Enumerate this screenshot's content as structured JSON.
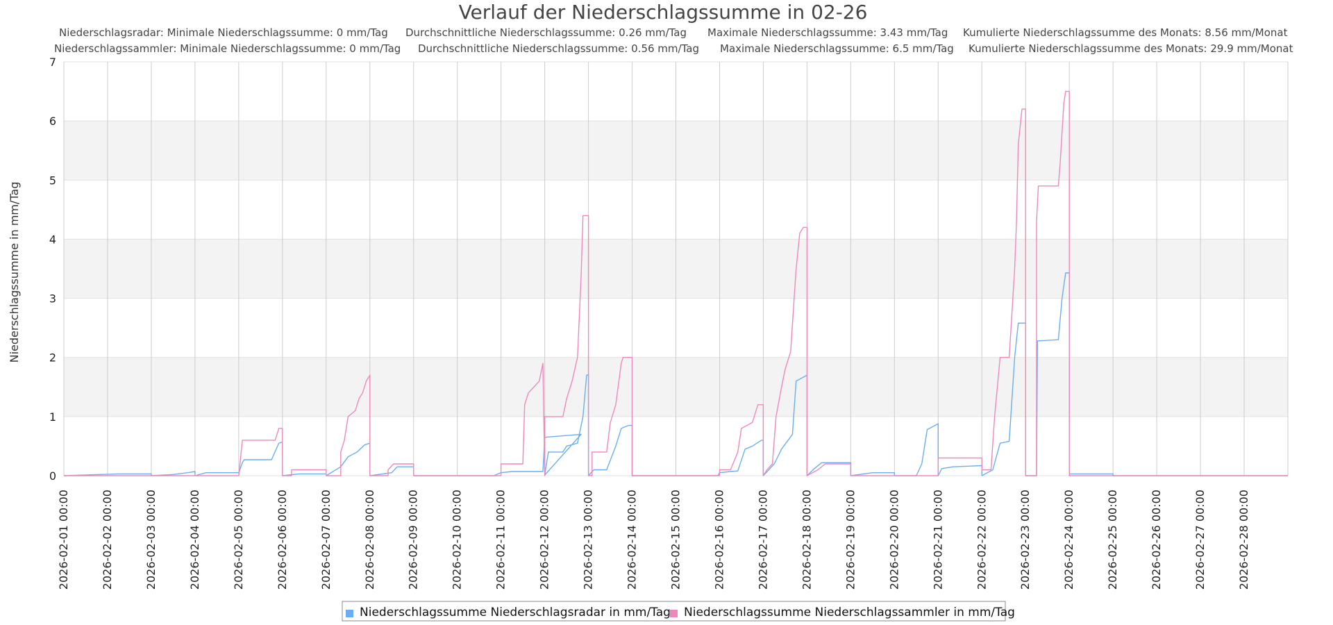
{
  "chart_data": {
    "type": "line",
    "title": "Verlauf der Niederschlagssumme in 02-26",
    "stats": [
      [
        "Niederschlagsradar: Minimale Niederschlagssumme: 0 mm/Tag",
        "Durchschnittliche Niederschlagssumme: 0.26 mm/Tag",
        "Maximale Niederschlagssumme: 3.43 mm/Tag",
        "Kumulierte Niederschlagssumme des Monats: 8.56 mm/Monat"
      ],
      [
        "Niederschlagssammler: Minimale Niederschlagssumme: 0 mm/Tag",
        "Durchschnittliche Niederschlagssumme: 0.56 mm/Tag",
        "Maximale Niederschlagssumme: 6.5 mm/Tag",
        "Kumulierte Niederschlagssumme des Monats: 29.9 mm/Monat"
      ]
    ],
    "xlabel": "",
    "ylabel": "Niederschlagssumme in mm/Tag",
    "x_tick_labels": [
      "2026-02-01 00:00",
      "2026-02-02 00:00",
      "2026-02-03 00:00",
      "2026-02-04 00:00",
      "2026-02-05 00:00",
      "2026-02-06 00:00",
      "2026-02-07 00:00",
      "2026-02-08 00:00",
      "2026-02-09 00:00",
      "2026-02-10 00:00",
      "2026-02-11 00:00",
      "2026-02-12 00:00",
      "2026-02-13 00:00",
      "2026-02-14 00:00",
      "2026-02-15 00:00",
      "2026-02-16 00:00",
      "2026-02-17 00:00",
      "2026-02-18 00:00",
      "2026-02-19 00:00",
      "2026-02-20 00:00",
      "2026-02-21 00:00",
      "2026-02-22 00:00",
      "2026-02-23 00:00",
      "2026-02-24 00:00",
      "2026-02-25 00:00",
      "2026-02-26 00:00",
      "2026-02-27 00:00",
      "2026-02-28 00:00"
    ],
    "x_range": [
      "2026-02-01 00:00",
      "2026-03-01 00:00"
    ],
    "ylim": [
      0,
      7
    ],
    "y_ticks": [
      0,
      1,
      2,
      3,
      4,
      5,
      6,
      7
    ],
    "grid": true,
    "legend_position": "bottom-center",
    "series": [
      {
        "name": "Niederschlagssumme Niederschlagsradar in mm/Tag",
        "color": "#6aaeee",
        "points": [
          [
            "2026-02-01 00:00",
            0
          ],
          [
            "2026-02-02 06:00",
            0.03
          ],
          [
            "2026-02-03 00:00",
            0.03
          ],
          [
            "2026-02-03 00:00",
            0
          ],
          [
            "2026-02-03 12:00",
            0.02
          ],
          [
            "2026-02-03 20:00",
            0.05
          ],
          [
            "2026-02-04 00:00",
            0.07
          ],
          [
            "2026-02-04 00:00",
            0
          ],
          [
            "2026-02-04 06:00",
            0.05
          ],
          [
            "2026-02-05 00:00",
            0.05
          ],
          [
            "2026-02-05 02:00",
            0.22
          ],
          [
            "2026-02-05 03:00",
            0.27
          ],
          [
            "2026-02-05 18:00",
            0.27
          ],
          [
            "2026-02-05 22:00",
            0.55
          ],
          [
            "2026-02-06 00:00",
            0.57
          ],
          [
            "2026-02-06 00:00",
            0
          ],
          [
            "2026-02-06 09:00",
            0.03
          ],
          [
            "2026-02-07 00:00",
            0.03
          ],
          [
            "2026-02-07 00:00",
            0
          ],
          [
            "2026-02-07 08:00",
            0.15
          ],
          [
            "2026-02-07 12:00",
            0.32
          ],
          [
            "2026-02-07 17:00",
            0.4
          ],
          [
            "2026-02-07 21:00",
            0.52
          ],
          [
            "2026-02-08 00:00",
            0.55
          ],
          [
            "2026-02-08 00:00",
            0
          ],
          [
            "2026-02-08 12:00",
            0.05
          ],
          [
            "2026-02-08 15:00",
            0.15
          ],
          [
            "2026-02-09 00:00",
            0.15
          ],
          [
            "2026-02-09 00:00",
            0
          ],
          [
            "2026-02-10 20:00",
            0
          ],
          [
            "2026-02-11 00:00",
            0.05
          ],
          [
            "2026-02-11 06:00",
            0.07
          ],
          [
            "2026-02-11 23:00",
            0.07
          ],
          [
            "2026-02-12 00:00",
            0.65
          ],
          [
            "2026-02-12 20:00",
            0.7
          ],
          [
            "2026-02-12 00:00",
            0.01
          ],
          [
            "2026-02-12 02:00",
            0.4
          ],
          [
            "2026-02-12 10:00",
            0.4
          ],
          [
            "2026-02-12 12:00",
            0.5
          ],
          [
            "2026-02-12 18:00",
            0.55
          ],
          [
            "2026-02-12 21:00",
            1.0
          ],
          [
            "2026-02-12 23:00",
            1.7
          ],
          [
            "2026-02-13 00:00",
            1.71
          ],
          [
            "2026-02-13 00:00",
            0
          ],
          [
            "2026-02-13 03:00",
            0.1
          ],
          [
            "2026-02-13 10:00",
            0.1
          ],
          [
            "2026-02-13 15:00",
            0.5
          ],
          [
            "2026-02-13 18:00",
            0.8
          ],
          [
            "2026-02-13 22:00",
            0.85
          ],
          [
            "2026-02-14 00:00",
            0.85
          ],
          [
            "2026-02-14 00:00",
            0
          ],
          [
            "2026-02-15 23:00",
            0
          ],
          [
            "2026-02-16 00:00",
            0.05
          ],
          [
            "2026-02-16 06:00",
            0.07
          ],
          [
            "2026-02-16 10:00",
            0.08
          ],
          [
            "2026-02-16 14:00",
            0.45
          ],
          [
            "2026-02-16 18:00",
            0.5
          ],
          [
            "2026-02-16 23:00",
            0.6
          ],
          [
            "2026-02-17 00:00",
            0.6
          ],
          [
            "2026-02-17 00:00",
            0
          ],
          [
            "2026-02-17 06:00",
            0.2
          ],
          [
            "2026-02-17 10:00",
            0.45
          ],
          [
            "2026-02-17 16:00",
            0.7
          ],
          [
            "2026-02-17 18:00",
            1.6
          ],
          [
            "2026-02-18 00:00",
            1.7
          ],
          [
            "2026-02-18 00:00",
            0
          ],
          [
            "2026-02-18 04:00",
            0.12
          ],
          [
            "2026-02-18 08:00",
            0.22
          ],
          [
            "2026-02-19 00:00",
            0.22
          ],
          [
            "2026-02-19 00:00",
            0
          ],
          [
            "2026-02-19 12:00",
            0.05
          ],
          [
            "2026-02-20 00:00",
            0.05
          ],
          [
            "2026-02-20 00:00",
            0
          ],
          [
            "2026-02-20 12:00",
            0
          ],
          [
            "2026-02-20 15:00",
            0.2
          ],
          [
            "2026-02-20 18:00",
            0.78
          ],
          [
            "2026-02-21 00:00",
            0.88
          ],
          [
            "2026-02-21 00:00",
            0
          ],
          [
            "2026-02-21 02:00",
            0.12
          ],
          [
            "2026-02-21 08:00",
            0.15
          ],
          [
            "2026-02-22 00:00",
            0.17
          ],
          [
            "2026-02-22 00:00",
            0
          ],
          [
            "2026-02-22 06:00",
            0.1
          ],
          [
            "2026-02-22 10:00",
            0.55
          ],
          [
            "2026-02-22 15:00",
            0.58
          ],
          [
            "2026-02-22 18:00",
            2.0
          ],
          [
            "2026-02-22 20:00",
            2.58
          ],
          [
            "2026-02-23 00:00",
            2.58
          ],
          [
            "2026-02-23 00:00",
            0
          ],
          [
            "2026-02-23 06:00",
            0
          ],
          [
            "2026-02-23 06:30",
            2.28
          ],
          [
            "2026-02-23 18:00",
            2.3
          ],
          [
            "2026-02-23 20:00",
            3.0
          ],
          [
            "2026-02-23 22:00",
            3.43
          ],
          [
            "2026-02-24 00:00",
            3.43
          ],
          [
            "2026-02-24 00:00",
            0
          ],
          [
            "2026-02-24 00:00",
            0.03
          ],
          [
            "2026-02-25 00:00",
            0.03
          ],
          [
            "2026-02-25 00:00",
            0
          ],
          [
            "2026-03-01 00:00",
            0
          ]
        ]
      },
      {
        "name": "Niederschlagssumme Niederschlagssammler in mm/Tag",
        "color": "#ee88bb",
        "points": [
          [
            "2026-02-01 00:00",
            0
          ],
          [
            "2026-02-05 00:00",
            0
          ],
          [
            "2026-02-05 01:00",
            0.3
          ],
          [
            "2026-02-05 02:00",
            0.6
          ],
          [
            "2026-02-05 20:00",
            0.6
          ],
          [
            "2026-02-05 21:00",
            0.7
          ],
          [
            "2026-02-05 22:00",
            0.8
          ],
          [
            "2026-02-06 00:00",
            0.8
          ],
          [
            "2026-02-06 00:00",
            0
          ],
          [
            "2026-02-06 05:00",
            0
          ],
          [
            "2026-02-06 05:00",
            0.1
          ],
          [
            "2026-02-07 00:00",
            0.1
          ],
          [
            "2026-02-07 00:00",
            0
          ],
          [
            "2026-02-07 08:00",
            0
          ],
          [
            "2026-02-07 08:00",
            0.4
          ],
          [
            "2026-02-07 10:00",
            0.6
          ],
          [
            "2026-02-07 12:00",
            1.0
          ],
          [
            "2026-02-07 16:00",
            1.1
          ],
          [
            "2026-02-07 18:00",
            1.3
          ],
          [
            "2026-02-07 20:00",
            1.4
          ],
          [
            "2026-02-07 22:00",
            1.6
          ],
          [
            "2026-02-08 00:00",
            1.7
          ],
          [
            "2026-02-08 00:00",
            0
          ],
          [
            "2026-02-08 10:00",
            0
          ],
          [
            "2026-02-08 10:00",
            0.1
          ],
          [
            "2026-02-08 13:00",
            0.2
          ],
          [
            "2026-02-09 00:00",
            0.2
          ],
          [
            "2026-02-09 00:00",
            0
          ],
          [
            "2026-02-11 00:00",
            0
          ],
          [
            "2026-02-11 00:00",
            0.2
          ],
          [
            "2026-02-11 12:00",
            0.2
          ],
          [
            "2026-02-11 13:00",
            1.2
          ],
          [
            "2026-02-11 15:00",
            1.4
          ],
          [
            "2026-02-11 18:00",
            1.5
          ],
          [
            "2026-02-11 21:00",
            1.6
          ],
          [
            "2026-02-11 23:00",
            1.9
          ],
          [
            "2026-02-12 00:00",
            0
          ],
          [
            "2026-02-12 00:00",
            1.0
          ],
          [
            "2026-02-12 10:00",
            1.0
          ],
          [
            "2026-02-12 12:00",
            1.3
          ],
          [
            "2026-02-12 15:00",
            1.6
          ],
          [
            "2026-02-12 18:00",
            2.0
          ],
          [
            "2026-02-12 20:00",
            3.4
          ],
          [
            "2026-02-12 21:00",
            4.4
          ],
          [
            "2026-02-13 00:00",
            4.4
          ],
          [
            "2026-02-13 00:00",
            0
          ],
          [
            "2026-02-13 02:00",
            0
          ],
          [
            "2026-02-13 02:00",
            0.4
          ],
          [
            "2026-02-13 10:00",
            0.4
          ],
          [
            "2026-02-13 12:00",
            0.9
          ],
          [
            "2026-02-13 15:00",
            1.2
          ],
          [
            "2026-02-13 18:00",
            1.9
          ],
          [
            "2026-02-13 19:00",
            2.0
          ],
          [
            "2026-02-14 00:00",
            2.0
          ],
          [
            "2026-02-14 00:00",
            0
          ],
          [
            "2026-02-16 00:00",
            0
          ],
          [
            "2026-02-16 00:00",
            0.1
          ],
          [
            "2026-02-16 06:00",
            0.1
          ],
          [
            "2026-02-16 10:00",
            0.4
          ],
          [
            "2026-02-16 12:00",
            0.8
          ],
          [
            "2026-02-16 18:00",
            0.9
          ],
          [
            "2026-02-16 21:00",
            1.2
          ],
          [
            "2026-02-17 00:00",
            1.2
          ],
          [
            "2026-02-17 00:00",
            0
          ],
          [
            "2026-02-17 02:00",
            0.1
          ],
          [
            "2026-02-17 05:00",
            0.2
          ],
          [
            "2026-02-17 07:00",
            1.0
          ],
          [
            "2026-02-17 10:00",
            1.5
          ],
          [
            "2026-02-17 12:00",
            1.8
          ],
          [
            "2026-02-17 15:00",
            2.1
          ],
          [
            "2026-02-17 18:00",
            3.5
          ],
          [
            "2026-02-17 20:00",
            4.1
          ],
          [
            "2026-02-17 22:00",
            4.2
          ],
          [
            "2026-02-18 00:00",
            4.2
          ],
          [
            "2026-02-18 00:00",
            0
          ],
          [
            "2026-02-18 06:00",
            0.1
          ],
          [
            "2026-02-18 10:00",
            0.2
          ],
          [
            "2026-02-19 00:00",
            0.2
          ],
          [
            "2026-02-19 00:00",
            0
          ],
          [
            "2026-02-21 00:00",
            0
          ],
          [
            "2026-02-21 00:00",
            0.3
          ],
          [
            "2026-02-22 00:00",
            0.3
          ],
          [
            "2026-02-22 00:00",
            0.1
          ],
          [
            "2026-02-22 05:00",
            0.1
          ],
          [
            "2026-02-22 07:00",
            1.0
          ],
          [
            "2026-02-22 10:00",
            2.0
          ],
          [
            "2026-02-22 15:00",
            2.0
          ],
          [
            "2026-02-22 18:00",
            3.5
          ],
          [
            "2026-02-22 19:00",
            4.3
          ],
          [
            "2026-02-22 20:00",
            5.6
          ],
          [
            "2026-02-22 22:00",
            6.2
          ],
          [
            "2026-02-23 00:00",
            6.2
          ],
          [
            "2026-02-23 00:00",
            0
          ],
          [
            "2026-02-23 06:00",
            0
          ],
          [
            "2026-02-23 06:00",
            4.3
          ],
          [
            "2026-02-23 07:00",
            4.9
          ],
          [
            "2026-02-23 18:00",
            4.9
          ],
          [
            "2026-02-23 19:00",
            5.3
          ],
          [
            "2026-02-23 21:00",
            6.3
          ],
          [
            "2026-02-23 22:00",
            6.5
          ],
          [
            "2026-02-24 00:00",
            6.5
          ],
          [
            "2026-02-24 00:00",
            0
          ],
          [
            "2026-03-01 00:00",
            0
          ]
        ]
      }
    ]
  }
}
